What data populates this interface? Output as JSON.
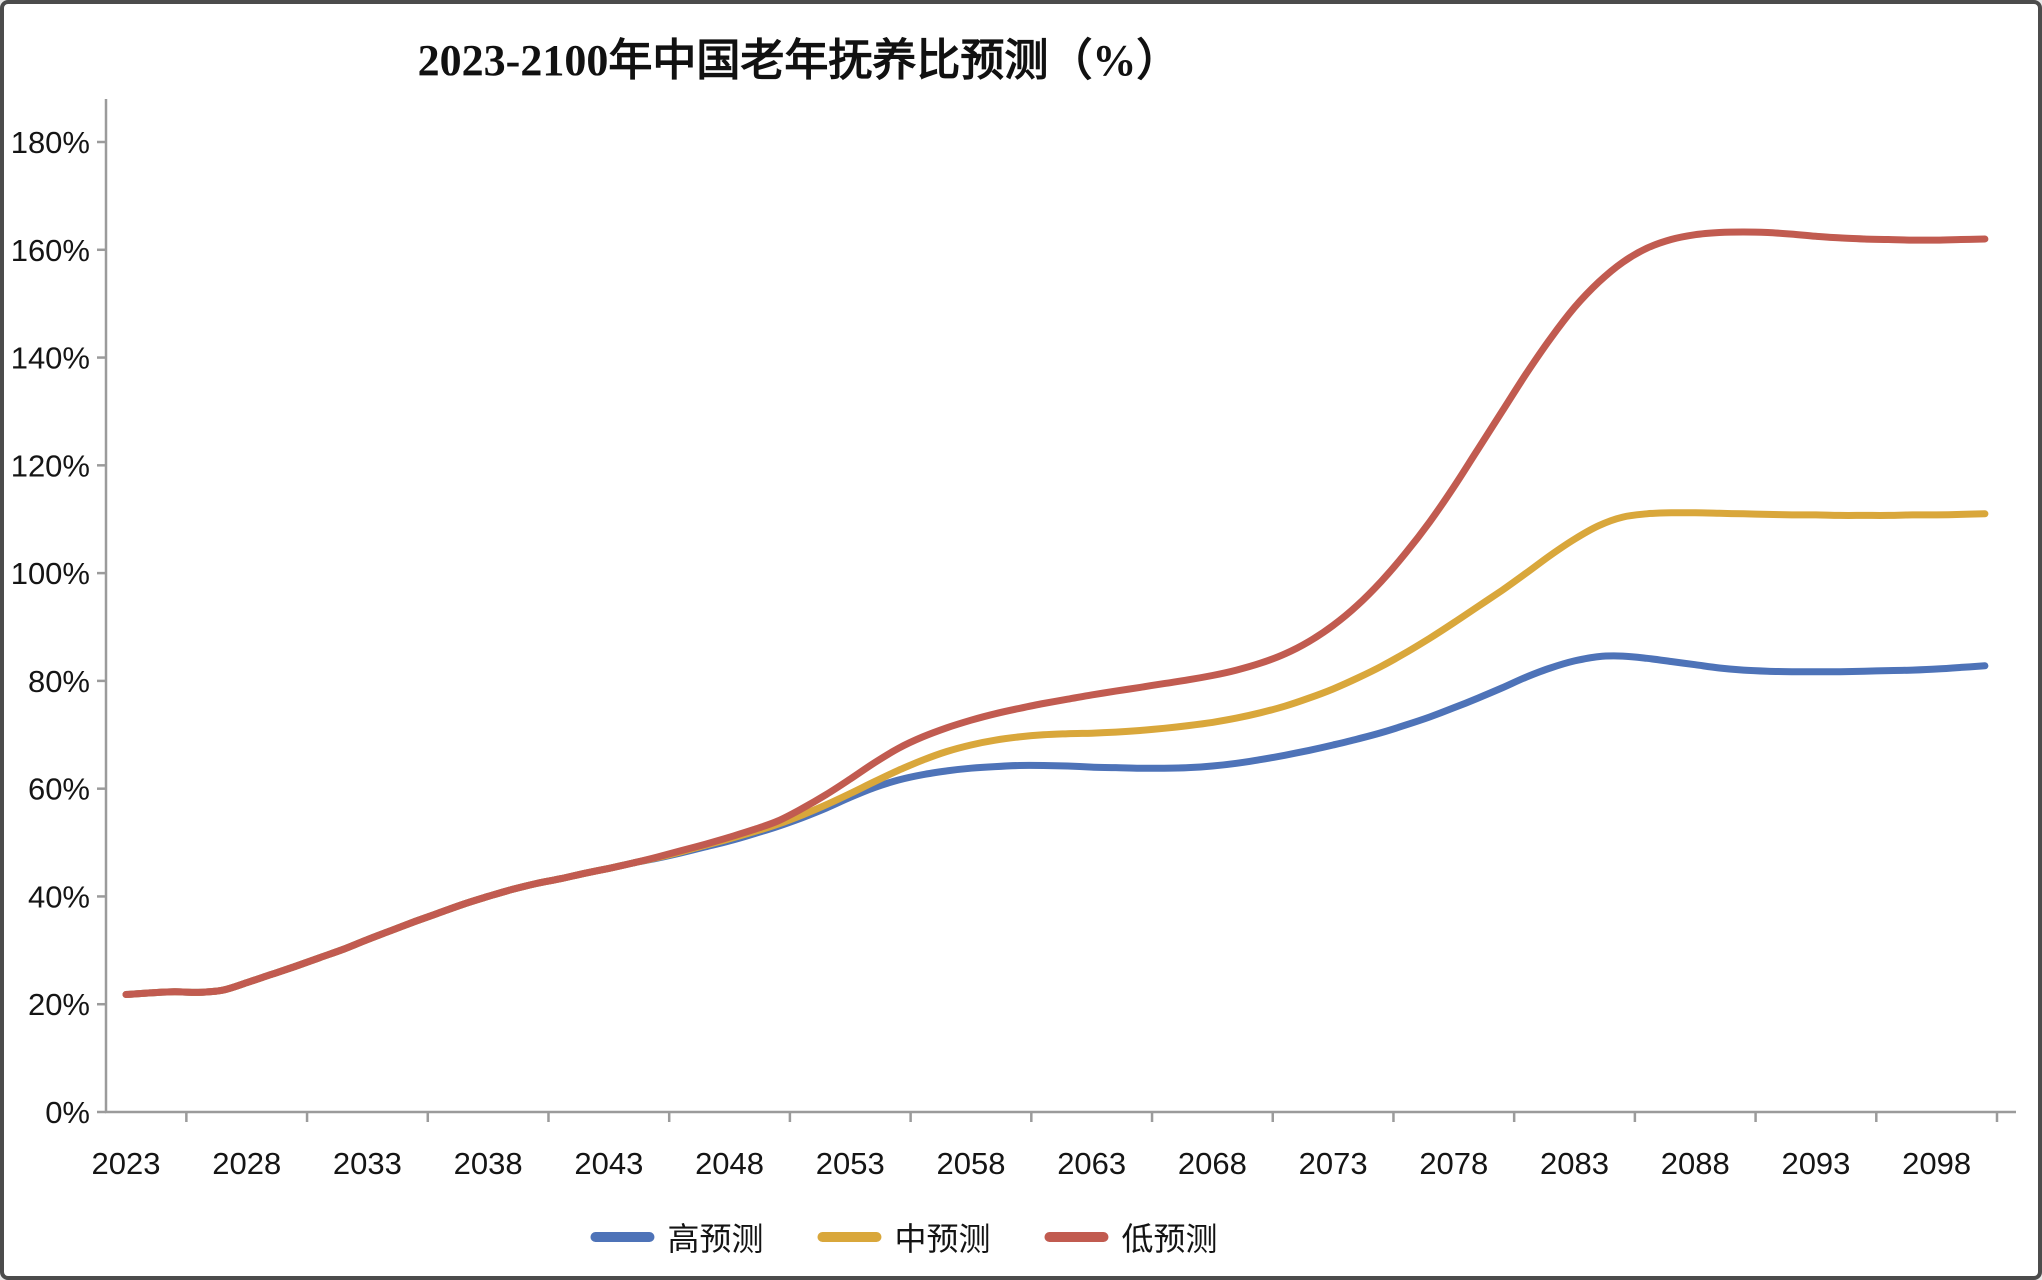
{
  "chart_data": {
    "type": "line",
    "title": "2023-2100年中国老年抚养比预测（%）",
    "xlabel": "",
    "ylabel": "",
    "ylim": [
      0,
      180
    ],
    "x_range": [
      2023,
      2100
    ],
    "grid": false,
    "legend_position": "bottom",
    "axis_color": "#9b9b9b",
    "text_color": "#151515",
    "y_ticks": [
      {
        "v": 0,
        "label": "0%"
      },
      {
        "v": 20,
        "label": "20%"
      },
      {
        "v": 40,
        "label": "40%"
      },
      {
        "v": 60,
        "label": "60%"
      },
      {
        "v": 80,
        "label": "80%"
      },
      {
        "v": 100,
        "label": "100%"
      },
      {
        "v": 120,
        "label": "120%"
      },
      {
        "v": 140,
        "label": "140%"
      },
      {
        "v": 160,
        "label": "160%"
      },
      {
        "v": 180,
        "label": "180%"
      }
    ],
    "x_ticks": [
      {
        "year": 2023,
        "label": "2023"
      },
      {
        "year": 2028,
        "label": "2028"
      },
      {
        "year": 2033,
        "label": "2033"
      },
      {
        "year": 2038,
        "label": "2038"
      },
      {
        "year": 2043,
        "label": "2043"
      },
      {
        "year": 2048,
        "label": "2048"
      },
      {
        "year": 2053,
        "label": "2053"
      },
      {
        "year": 2058,
        "label": "2058"
      },
      {
        "year": 2063,
        "label": "2063"
      },
      {
        "year": 2068,
        "label": "2068"
      },
      {
        "year": 2073,
        "label": "2073"
      },
      {
        "year": 2078,
        "label": "2078"
      },
      {
        "year": 2083,
        "label": "2083"
      },
      {
        "year": 2088,
        "label": "2088"
      },
      {
        "year": 2093,
        "label": "2093"
      },
      {
        "year": 2098,
        "label": "2098"
      }
    ],
    "years": [
      2023,
      2024,
      2025,
      2026,
      2027,
      2028,
      2029,
      2030,
      2031,
      2032,
      2033,
      2034,
      2035,
      2036,
      2037,
      2038,
      2039,
      2040,
      2041,
      2042,
      2043,
      2044,
      2045,
      2046,
      2047,
      2048,
      2049,
      2050,
      2051,
      2052,
      2053,
      2054,
      2055,
      2056,
      2057,
      2058,
      2059,
      2060,
      2061,
      2062,
      2063,
      2064,
      2065,
      2066,
      2067,
      2068,
      2069,
      2070,
      2071,
      2072,
      2073,
      2074,
      2075,
      2076,
      2077,
      2078,
      2079,
      2080,
      2081,
      2082,
      2083,
      2084,
      2085,
      2086,
      2087,
      2088,
      2089,
      2090,
      2091,
      2092,
      2093,
      2094,
      2095,
      2096,
      2097,
      2098,
      2099,
      2100
    ],
    "series": [
      {
        "id": "high-forecast",
        "name": "高预测",
        "color": "#4e73b8",
        "values": [
          21.8,
          22.1,
          22.3,
          22.2,
          22.6,
          24.0,
          25.5,
          27.0,
          28.6,
          30.2,
          32.0,
          33.7,
          35.4,
          37.0,
          38.6,
          40.0,
          41.3,
          42.4,
          43.3,
          44.3,
          45.2,
          46.2,
          47.1,
          48.1,
          49.2,
          50.3,
          51.6,
          53.0,
          54.6,
          56.4,
          58.4,
          60.2,
          61.6,
          62.6,
          63.3,
          63.8,
          64.1,
          64.3,
          64.3,
          64.2,
          64.0,
          63.9,
          63.8,
          63.8,
          63.9,
          64.2,
          64.7,
          65.4,
          66.2,
          67.1,
          68.1,
          69.2,
          70.4,
          71.8,
          73.3,
          75.0,
          76.8,
          78.7,
          80.7,
          82.4,
          83.7,
          84.5,
          84.6,
          84.2,
          83.6,
          83.0,
          82.4,
          82.0,
          81.8,
          81.7,
          81.7,
          81.7,
          81.8,
          81.9,
          82.0,
          82.2,
          82.5,
          82.8
        ]
      },
      {
        "id": "mid-forecast",
        "name": "中预测",
        "color": "#d9a73b",
        "values": [
          21.8,
          22.1,
          22.3,
          22.2,
          22.6,
          24.0,
          25.5,
          27.0,
          28.6,
          30.2,
          32.0,
          33.7,
          35.4,
          37.0,
          38.6,
          40.0,
          41.3,
          42.4,
          43.3,
          44.3,
          45.2,
          46.2,
          47.2,
          48.3,
          49.5,
          50.7,
          52.0,
          53.4,
          55.1,
          57.0,
          59.1,
          61.3,
          63.4,
          65.3,
          66.9,
          68.1,
          69.0,
          69.6,
          70.0,
          70.2,
          70.3,
          70.5,
          70.8,
          71.2,
          71.7,
          72.3,
          73.1,
          74.1,
          75.3,
          76.8,
          78.5,
          80.5,
          82.7,
          85.2,
          87.9,
          90.8,
          93.8,
          96.8,
          100.0,
          103.3,
          106.3,
          108.8,
          110.4,
          111.0,
          111.2,
          111.2,
          111.1,
          111.0,
          110.9,
          110.8,
          110.8,
          110.7,
          110.7,
          110.7,
          110.8,
          110.8,
          110.9,
          111.0
        ]
      },
      {
        "id": "low-forecast",
        "name": "低预测",
        "color": "#c15b50",
        "values": [
          21.8,
          22.1,
          22.3,
          22.2,
          22.6,
          24.0,
          25.5,
          27.0,
          28.6,
          30.2,
          32.0,
          33.7,
          35.4,
          37.0,
          38.6,
          40.0,
          41.3,
          42.4,
          43.3,
          44.3,
          45.2,
          46.2,
          47.3,
          48.5,
          49.7,
          51.0,
          52.4,
          54.0,
          56.3,
          58.9,
          61.8,
          64.8,
          67.5,
          69.6,
          71.3,
          72.7,
          73.9,
          74.9,
          75.8,
          76.6,
          77.4,
          78.1,
          78.8,
          79.5,
          80.2,
          81.0,
          82.0,
          83.3,
          85.0,
          87.3,
          90.3,
          94.0,
          98.5,
          103.7,
          109.5,
          116.0,
          123.0,
          130.0,
          137.0,
          143.5,
          149.3,
          154.0,
          157.7,
          160.3,
          161.9,
          162.8,
          163.2,
          163.3,
          163.2,
          162.9,
          162.5,
          162.2,
          162.0,
          161.9,
          161.8,
          161.8,
          161.9,
          162.0
        ]
      }
    ]
  }
}
